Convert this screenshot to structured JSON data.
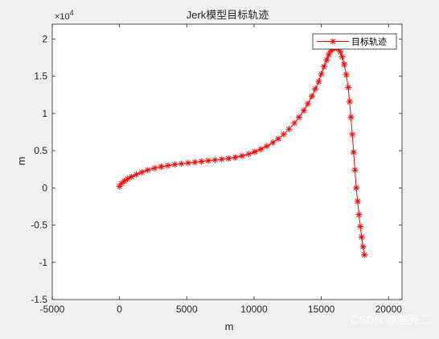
{
  "chart_data": {
    "type": "line",
    "title": "Jerk模型目标轨迹",
    "xlabel": "m",
    "ylabel": "m",
    "xlim": [
      -5000,
      21000
    ],
    "ylim": [
      -1.5,
      2.2
    ],
    "y_exponent_label": "×10",
    "y_exponent_power": "4",
    "x_ticks": [
      -5000,
      0,
      5000,
      10000,
      15000,
      20000
    ],
    "x_tick_labels": [
      "-5000",
      "0",
      "5000",
      "10000",
      "15000",
      "20000"
    ],
    "y_ticks": [
      -1.5,
      -1,
      -0.5,
      0,
      0.5,
      1,
      1.5,
      2
    ],
    "y_tick_labels": [
      "-1.5",
      "-1",
      "-0.5",
      "0",
      "0.5",
      "1",
      "1.5",
      "2"
    ],
    "grid": false,
    "legend_position": "top-right",
    "colors": {
      "series": "#ff0000",
      "axes": "#262626",
      "plot_bg": "#ffffff",
      "figure_bg": "#f0f0f0"
    },
    "series": [
      {
        "name": "目标轨迹",
        "marker": "asterisk",
        "x": [
          0,
          150,
          350,
          600,
          900,
          1250,
          1650,
          2100,
          2600,
          3100,
          3600,
          4100,
          4600,
          5100,
          5600,
          6100,
          6600,
          7100,
          7600,
          8100,
          8600,
          9100,
          9600,
          10050,
          10500,
          10950,
          11400,
          11800,
          12200,
          12600,
          13000,
          13350,
          13700,
          14000,
          14300,
          14550,
          14800,
          15000,
          15200,
          15400,
          15550,
          15700,
          15800,
          15900,
          16000,
          16100,
          16250,
          16400,
          16550,
          16700,
          16850,
          17000,
          17100,
          17200,
          17300,
          17400,
          17500,
          17600,
          17700,
          17800,
          17900,
          18000,
          18100,
          18200
        ],
        "y": [
          0.02,
          0.06,
          0.09,
          0.12,
          0.15,
          0.18,
          0.21,
          0.24,
          0.265,
          0.285,
          0.3,
          0.315,
          0.325,
          0.335,
          0.345,
          0.355,
          0.365,
          0.375,
          0.385,
          0.395,
          0.41,
          0.43,
          0.455,
          0.485,
          0.52,
          0.56,
          0.61,
          0.66,
          0.72,
          0.79,
          0.87,
          0.95,
          1.04,
          1.13,
          1.23,
          1.33,
          1.43,
          1.53,
          1.63,
          1.72,
          1.79,
          1.84,
          1.87,
          1.885,
          1.89,
          1.885,
          1.87,
          1.83,
          1.76,
          1.66,
          1.52,
          1.35,
          1.16,
          0.95,
          0.72,
          0.48,
          0.24,
          0.0,
          -0.18,
          -0.36,
          -0.52,
          -0.66,
          -0.79,
          -0.9
        ]
      }
    ]
  },
  "watermark": "CSDN @脑壳二"
}
